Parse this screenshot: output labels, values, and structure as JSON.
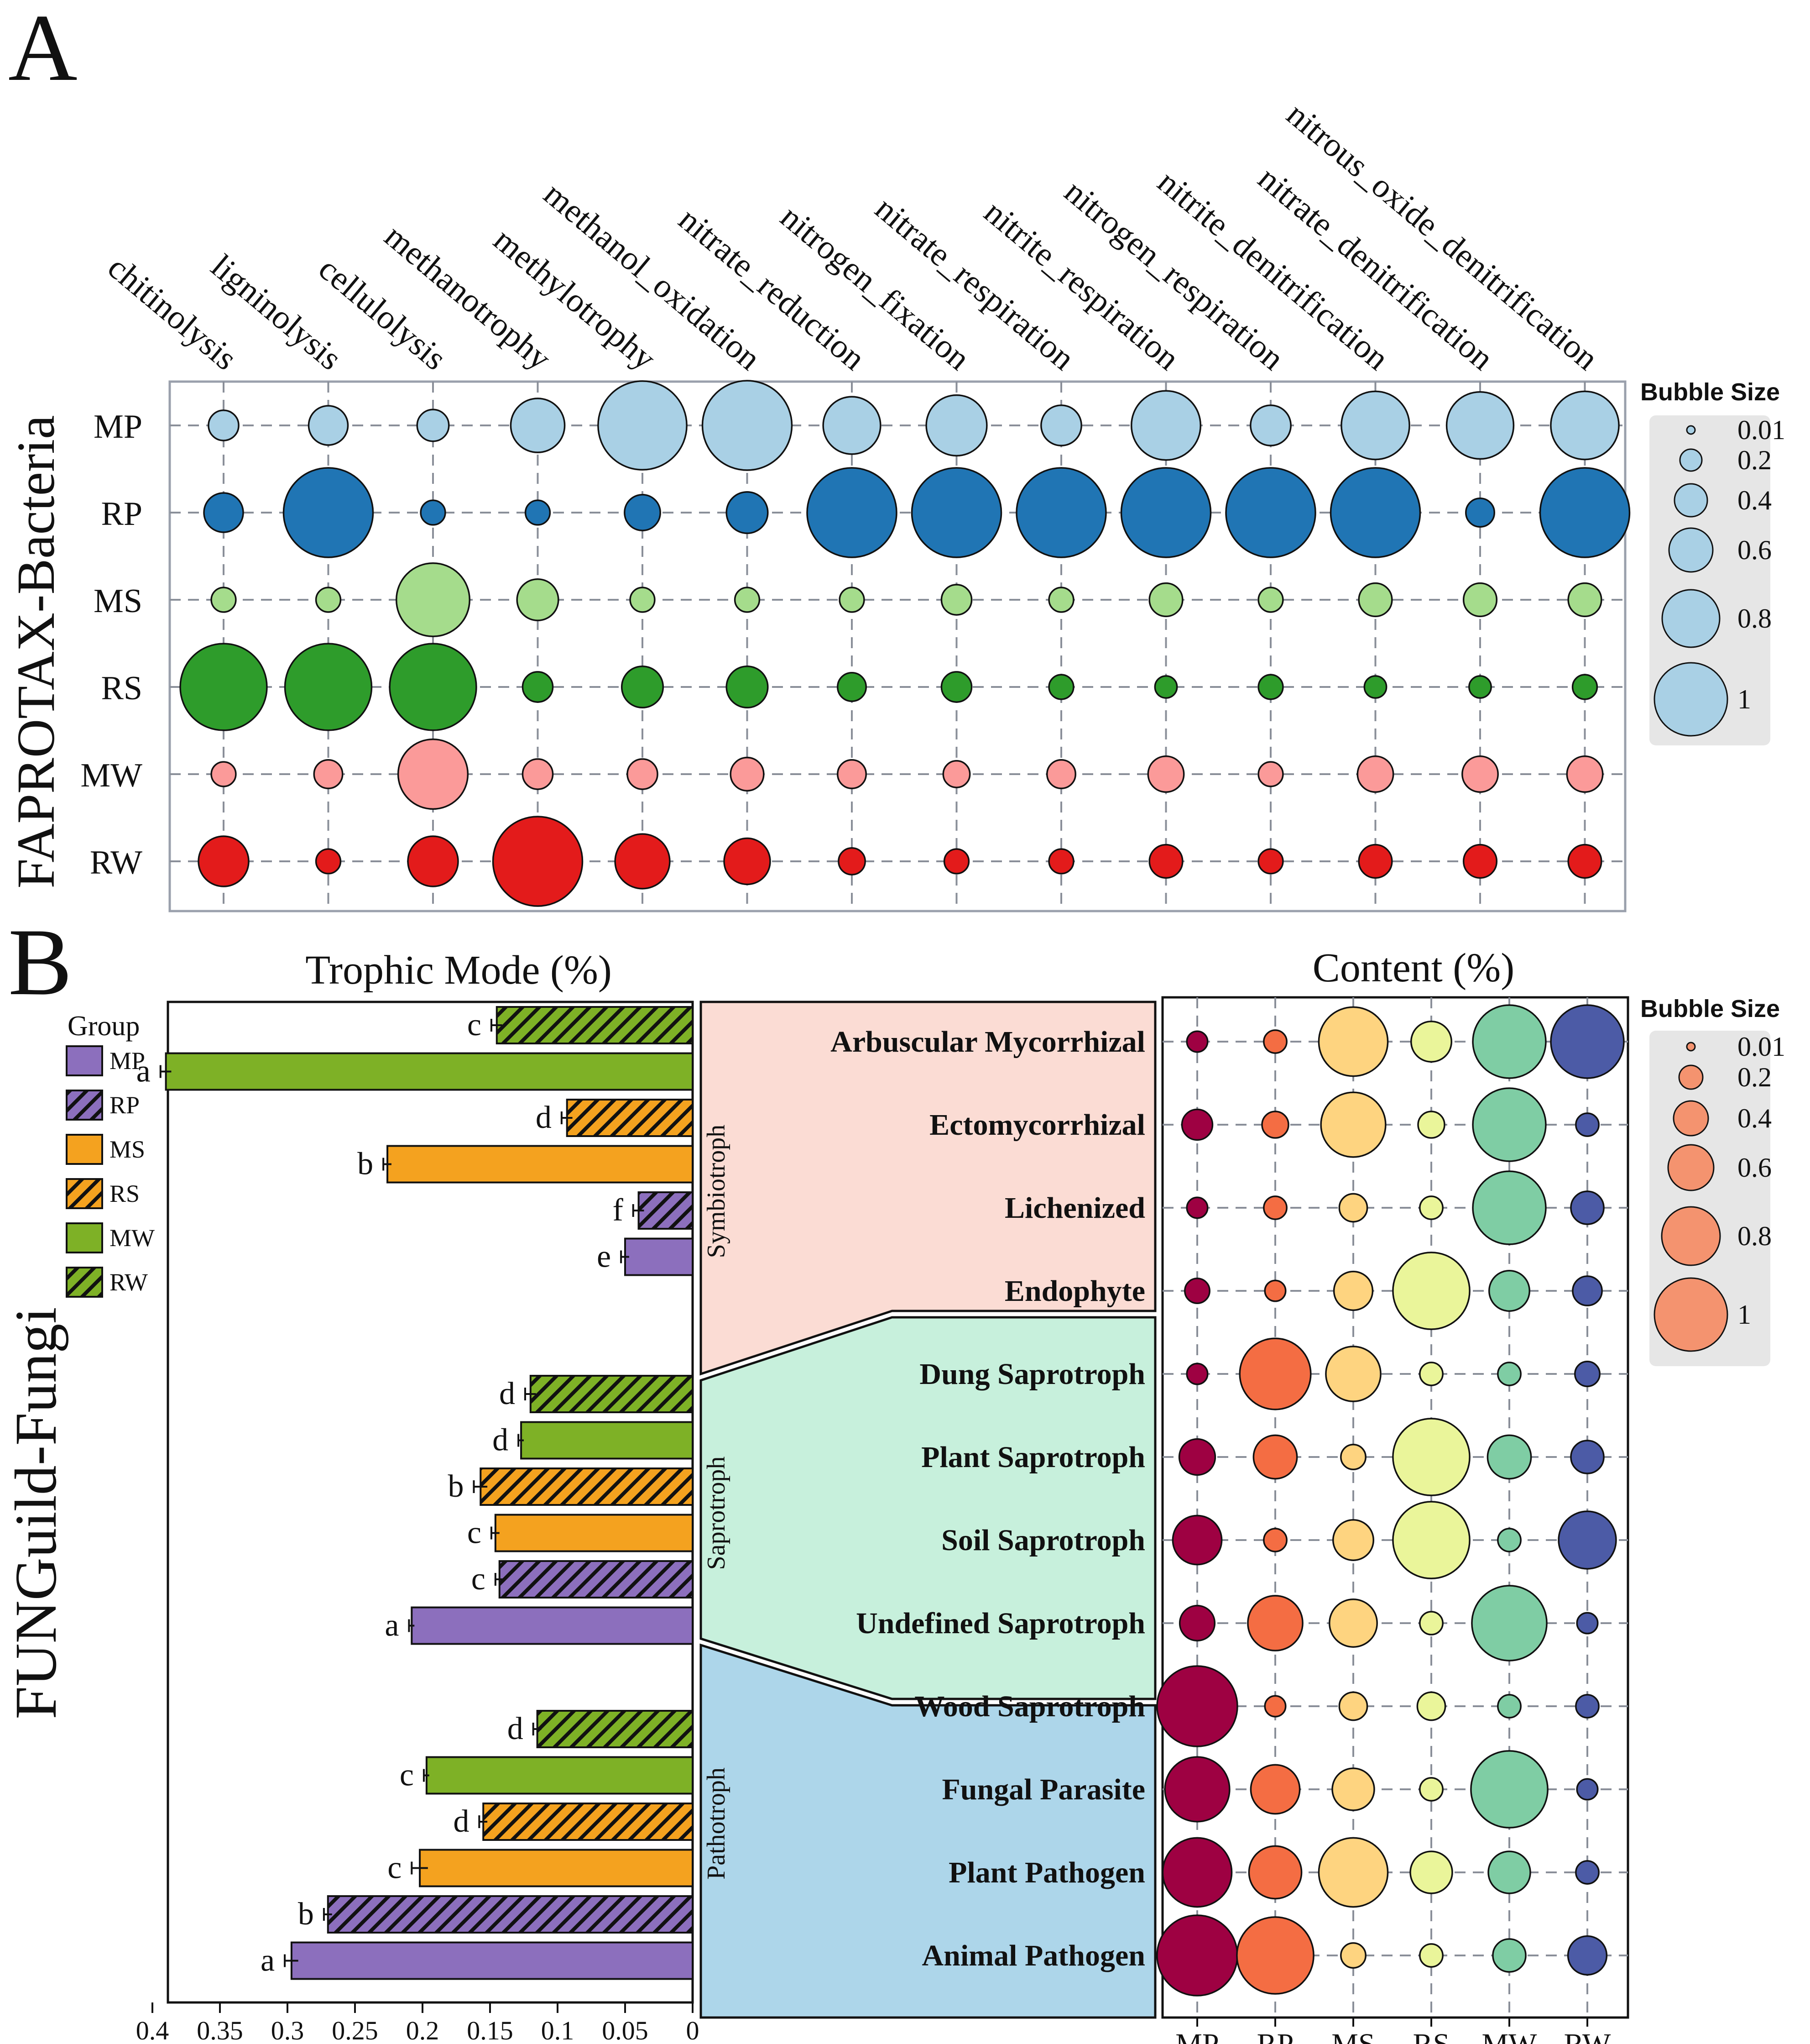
{
  "panel_a": {
    "letter": "A",
    "row_title": "FAPROTAX-Bacteria",
    "legend": {
      "title": "Bubble Size",
      "sizes": [
        "0.01",
        "0.2",
        "0.4",
        "0.6",
        "0.8",
        "1"
      ]
    }
  },
  "panel_b": {
    "letter": "B",
    "row_title": "FUNGuild-Fungi",
    "bar_title": "Trophic Mode (%)",
    "bubble_title": "Content (%)",
    "group_legend": {
      "title": "Group",
      "items": [
        {
          "label": "MP",
          "color": "#8c6fbd",
          "hatch": false
        },
        {
          "label": "RP",
          "color": "#8c6fbd",
          "hatch": true
        },
        {
          "label": "MS",
          "color": "#f4a21f",
          "hatch": false
        },
        {
          "label": "RS",
          "color": "#f4a21f",
          "hatch": true
        },
        {
          "label": "MW",
          "color": "#7eb126",
          "hatch": false
        },
        {
          "label": "RW",
          "color": "#7eb126",
          "hatch": true
        }
      ]
    },
    "bubble_legend": {
      "title": "Bubble Size",
      "sizes": [
        "0.01",
        "0.2",
        "0.4",
        "0.6",
        "0.8",
        "1"
      ]
    },
    "modes": [
      {
        "label": "Symbiotroph",
        "color": "#fbdcd4"
      },
      {
        "label": "Saprotroph",
        "color": "#c7f0dc"
      },
      {
        "label": "Pathotroph",
        "color": "#add6ea"
      }
    ]
  },
  "chart_data": [
    {
      "type": "bubble",
      "title": "FAPROTAX-Bacteria",
      "columns": [
        "chitinolysis",
        "ligninolysis",
        "cellulolysis",
        "methanotrophy",
        "methylotrophy",
        "methanol_oxidation",
        "nitrate_reduction",
        "nitrogen_fixation",
        "nitrate_respiration",
        "nitrite_respiration",
        "nitrogen_respiration",
        "nitrite_denitrification",
        "nitrate_denitrification",
        "nitrous_oxide_denitrification"
      ],
      "rows": [
        "MP",
        "RP",
        "MS",
        "RS",
        "MW",
        "RW"
      ],
      "row_colors": [
        "#a9d0e5",
        "#2075b4",
        "#a5dc8c",
        "#2e9c2b",
        "#fb9a99",
        "#e31b1b"
      ],
      "size_scale": [
        0.01,
        1
      ],
      "values": [
        [
          0.06,
          0.13,
          0.07,
          0.3,
          0.98,
          1.0,
          0.35,
          0.4,
          0.14,
          0.55,
          0.14,
          0.53,
          0.51,
          0.53
        ],
        [
          0.13,
          1.0,
          0.03,
          0.03,
          0.1,
          0.15,
          1.0,
          1.0,
          1.0,
          1.0,
          1.0,
          1.0,
          0.05,
          1.0
        ],
        [
          0.03,
          0.03,
          0.63,
          0.15,
          0.03,
          0.03,
          0.03,
          0.06,
          0.03,
          0.08,
          0.03,
          0.08,
          0.08,
          0.08
        ],
        [
          0.93,
          0.93,
          0.93,
          0.06,
          0.15,
          0.15,
          0.05,
          0.06,
          0.03,
          0.02,
          0.03,
          0.02,
          0.02,
          0.03
        ],
        [
          0.03,
          0.05,
          0.56,
          0.06,
          0.06,
          0.08,
          0.05,
          0.04,
          0.05,
          0.1,
          0.03,
          0.1,
          0.1,
          0.1
        ],
        [
          0.25,
          0.03,
          0.25,
          1.0,
          0.31,
          0.2,
          0.04,
          0.03,
          0.03,
          0.08,
          0.03,
          0.08,
          0.08,
          0.08
        ]
      ]
    },
    {
      "type": "bar",
      "orientation": "horizontal",
      "title": "Trophic Mode (%)",
      "x_ticks": [
        "0.4",
        "0.35",
        "0.3",
        "0.25",
        "0.2",
        "0.15",
        "0.1",
        "0.05",
        "0"
      ],
      "xlim": [
        0.4,
        0
      ],
      "groups": [
        {
          "mode": "Symbiotroph",
          "bars": [
            {
              "group": "RW",
              "value": 0.145,
              "error": 0.004,
              "letter": "c"
            },
            {
              "group": "MW",
              "value": 0.39,
              "error": 0.004,
              "letter": "a"
            },
            {
              "group": "RS",
              "value": 0.093,
              "error": 0.004,
              "letter": "d"
            },
            {
              "group": "MS",
              "value": 0.226,
              "error": 0.003,
              "letter": "b"
            },
            {
              "group": "RP",
              "value": 0.04,
              "error": 0.004,
              "letter": "f"
            },
            {
              "group": "MP",
              "value": 0.05,
              "error": 0.003,
              "letter": "e"
            }
          ]
        },
        {
          "mode": "Saprotroph",
          "bars": [
            {
              "group": "RW",
              "value": 0.12,
              "error": 0.004,
              "letter": "d"
            },
            {
              "group": "MW",
              "value": 0.127,
              "error": 0.002,
              "letter": "d"
            },
            {
              "group": "RS",
              "value": 0.157,
              "error": 0.005,
              "letter": "b"
            },
            {
              "group": "MS",
              "value": 0.146,
              "error": 0.003,
              "letter": "c"
            },
            {
              "group": "RP",
              "value": 0.143,
              "error": 0.003,
              "letter": "c"
            },
            {
              "group": "MP",
              "value": 0.208,
              "error": 0.002,
              "letter": "a"
            }
          ]
        },
        {
          "mode": "Pathotroph",
          "bars": [
            {
              "group": "RW",
              "value": 0.115,
              "error": 0.003,
              "letter": "d"
            },
            {
              "group": "MW",
              "value": 0.197,
              "error": 0.002,
              "letter": "c"
            },
            {
              "group": "RS",
              "value": 0.155,
              "error": 0.003,
              "letter": "d"
            },
            {
              "group": "MS",
              "value": 0.202,
              "error": 0.006,
              "letter": "c"
            },
            {
              "group": "RP",
              "value": 0.27,
              "error": 0.003,
              "letter": "b"
            },
            {
              "group": "MP",
              "value": 0.297,
              "error": 0.005,
              "letter": "a"
            }
          ]
        }
      ]
    },
    {
      "type": "bubble",
      "title": "Content (%)",
      "rows": [
        "Arbuscular Mycorrhizal",
        "Ectomycorrhizal",
        "Lichenized",
        "Endophyte",
        "Dung Saprotroph",
        "Plant Saprotroph",
        "Soil Saprotroph",
        "Undefined Saprotroph",
        "Wood Saprotroph",
        "Fungal Parasite",
        "Plant Pathogen",
        "Animal Pathogen"
      ],
      "columns": [
        "MP",
        "RP",
        "MS",
        "RS",
        "MW",
        "RW"
      ],
      "column_colors": [
        "#9e0142",
        "#f46d43",
        "#fed480",
        "#eaf59a",
        "#7fcda4",
        "#4c5ba6"
      ],
      "size_scale": [
        0.01,
        1
      ],
      "values": [
        [
          0.02,
          0.03,
          0.7,
          0.18,
          0.8,
          0.8
        ],
        [
          0.08,
          0.05,
          0.6,
          0.05,
          0.8,
          0.03
        ],
        [
          0.02,
          0.03,
          0.06,
          0.03,
          0.8,
          0.1
        ],
        [
          0.04,
          0.02,
          0.16,
          0.9,
          0.18,
          0.07
        ],
        [
          0.02,
          0.75,
          0.4,
          0.03,
          0.03,
          0.04
        ],
        [
          0.13,
          0.22,
          0.04,
          0.9,
          0.22,
          0.1
        ],
        [
          0.3,
          0.03,
          0.18,
          0.9,
          0.03,
          0.45
        ],
        [
          0.12,
          0.4,
          0.28,
          0.03,
          0.85,
          0.02
        ],
        [
          1.0,
          0.02,
          0.06,
          0.06,
          0.03,
          0.03
        ],
        [
          0.6,
          0.3,
          0.2,
          0.03,
          0.9,
          0.02
        ],
        [
          0.7,
          0.36,
          0.7,
          0.2,
          0.2,
          0.03
        ],
        [
          1.0,
          0.9,
          0.04,
          0.03,
          0.1,
          0.16
        ]
      ]
    }
  ]
}
